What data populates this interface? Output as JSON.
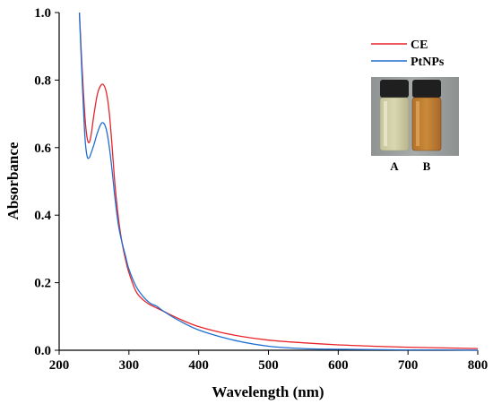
{
  "chart_data": {
    "type": "line",
    "title": "",
    "xlabel": "Wavelength (nm)",
    "ylabel": "Absorbance",
    "xlim": [
      200,
      800
    ],
    "ylim": [
      0.0,
      1.0
    ],
    "xticks": [
      "200",
      "300",
      "400",
      "500",
      "600",
      "700",
      "800"
    ],
    "yticks": [
      "0.0",
      "0.2",
      "0.4",
      "0.6",
      "0.8",
      "1.0"
    ],
    "legend_position": "top-right",
    "series": [
      {
        "name": "CE",
        "color": "#e8242a",
        "x": [
          229,
          233,
          237,
          240,
          243,
          246,
          250,
          255,
          260,
          264,
          268,
          272,
          276,
          280,
          285,
          290,
          295,
          300,
          310,
          320,
          330,
          340,
          350,
          370,
          400,
          450,
          500,
          550,
          600,
          650,
          700,
          750,
          800
        ],
        "y": [
          1.0,
          0.83,
          0.69,
          0.63,
          0.615,
          0.64,
          0.7,
          0.76,
          0.785,
          0.785,
          0.76,
          0.7,
          0.6,
          0.49,
          0.39,
          0.32,
          0.27,
          0.23,
          0.175,
          0.15,
          0.135,
          0.125,
          0.115,
          0.095,
          0.07,
          0.045,
          0.03,
          0.022,
          0.016,
          0.012,
          0.009,
          0.007,
          0.005
        ]
      },
      {
        "name": "PtNPs",
        "color": "#1f6fd1",
        "x": [
          229,
          233,
          237,
          240,
          243,
          246,
          250,
          255,
          260,
          264,
          268,
          272,
          276,
          280,
          285,
          290,
          295,
          300,
          310,
          320,
          330,
          340,
          350,
          370,
          400,
          450,
          500,
          550,
          600,
          650,
          700,
          750,
          800
        ],
        "y": [
          1.0,
          0.8,
          0.63,
          0.575,
          0.57,
          0.585,
          0.61,
          0.645,
          0.67,
          0.672,
          0.65,
          0.6,
          0.53,
          0.45,
          0.37,
          0.32,
          0.28,
          0.24,
          0.19,
          0.16,
          0.14,
          0.13,
          0.115,
          0.09,
          0.06,
          0.03,
          0.012,
          0.005,
          0.003,
          0.002,
          0.001,
          0.001,
          0.0
        ]
      }
    ]
  },
  "inset": {
    "labels": [
      "A",
      "B"
    ],
    "vial_a_color": "#d9d7b0",
    "vial_b_color": "#c98a3a"
  }
}
